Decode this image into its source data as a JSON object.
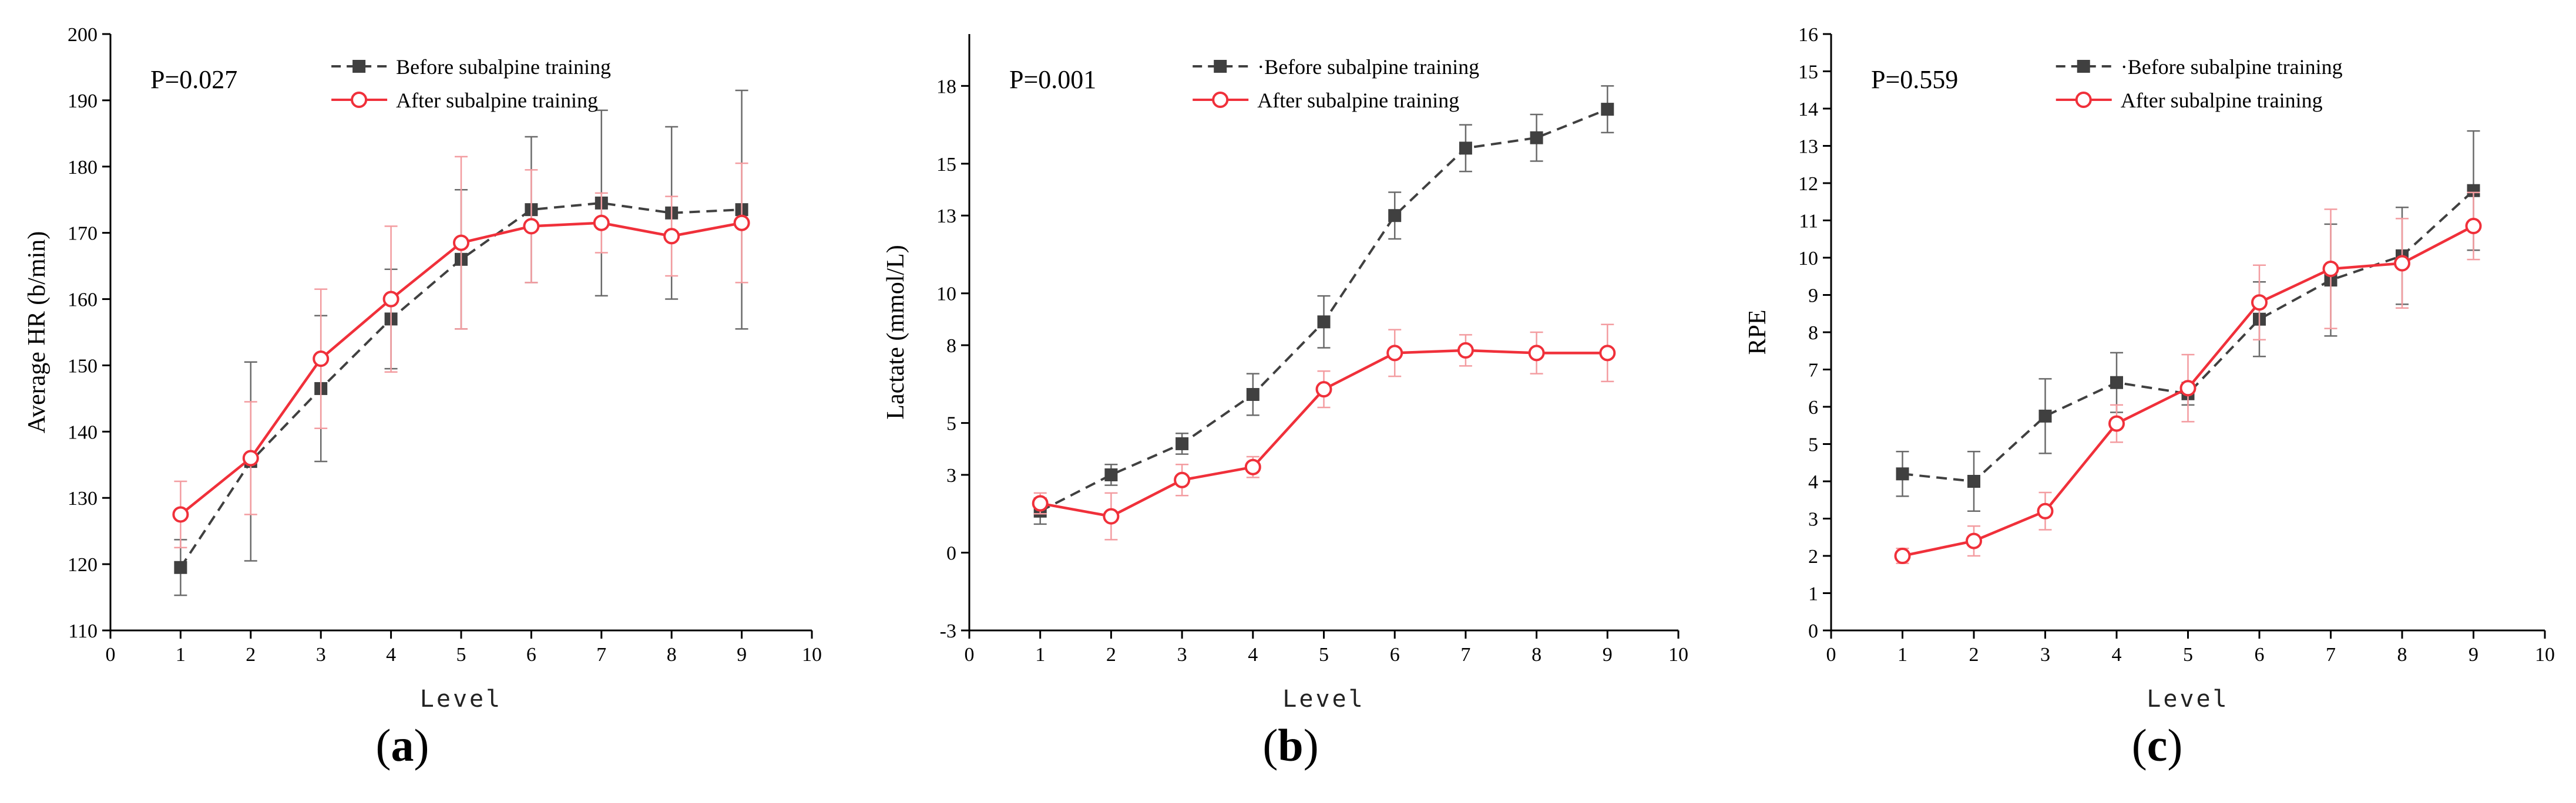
{
  "chart_data": [
    {
      "id": "a",
      "type": "line",
      "panel_label": "a",
      "title": "",
      "p_value": "P=0.027",
      "xlabel": "Level",
      "ylabel": "Average HR (b/min)",
      "xlim": [
        0,
        10
      ],
      "ylim": [
        110,
        200
      ],
      "xticks": [
        0,
        1,
        2,
        3,
        4,
        5,
        6,
        7,
        8,
        9,
        10
      ],
      "yticks": [
        110,
        120,
        130,
        140,
        150,
        160,
        170,
        180,
        190,
        200
      ],
      "legend_position": "top-center",
      "series": [
        {
          "name": "Before subalpine training",
          "legend_label": "Before subalpine training",
          "color": "#404040",
          "marker": "square",
          "line": "dashed",
          "x": [
            1,
            2,
            3,
            4,
            5,
            6,
            7,
            8,
            9
          ],
          "y": [
            119.5,
            135.5,
            146.5,
            157,
            166,
            173.5,
            174.5,
            173,
            173.5
          ],
          "err": [
            4.2,
            15,
            11,
            7.5,
            10.5,
            11,
            14,
            13,
            18
          ]
        },
        {
          "name": "After subalpine training",
          "legend_label": "After subalpine training",
          "color": "#f0303a",
          "marker": "circle",
          "line": "solid",
          "x": [
            1,
            2,
            3,
            4,
            5,
            6,
            7,
            8,
            9
          ],
          "y": [
            127.5,
            136,
            151,
            160,
            168.5,
            171,
            171.5,
            169.5,
            171.5
          ],
          "err": [
            5,
            8.5,
            10.5,
            11,
            13,
            8.5,
            4.5,
            6,
            9
          ]
        }
      ]
    },
    {
      "id": "b",
      "type": "line",
      "panel_label": "b",
      "title": "",
      "p_value": "P=0.001",
      "xlabel": "Level",
      "ylabel": "Lactate (mmol/L)",
      "xlim": [
        0,
        10
      ],
      "ylim": [
        -3,
        20
      ],
      "xticks": [
        0,
        1,
        2,
        3,
        4,
        5,
        6,
        7,
        8,
        9,
        10
      ],
      "yticks": [
        -3,
        0,
        3,
        5,
        8,
        10,
        13,
        15,
        18
      ],
      "legend_position": "top-center",
      "series": [
        {
          "name": "Before subalpine training",
          "legend_label": "·Before subalpine training",
          "color": "#404040",
          "marker": "square",
          "line": "dashed",
          "x": [
            1,
            2,
            3,
            4,
            5,
            6,
            7,
            8,
            9
          ],
          "y": [
            1.6,
            3.0,
            4.2,
            6.1,
            8.9,
            13.0,
            15.6,
            16.0,
            17.1
          ],
          "err": [
            0.5,
            0.4,
            0.4,
            0.8,
            1.0,
            0.9,
            0.9,
            0.9,
            0.9
          ]
        },
        {
          "name": "After subalpine training",
          "legend_label": "After subalpine training",
          "color": "#f0303a",
          "marker": "circle",
          "line": "solid",
          "x": [
            1,
            2,
            3,
            4,
            5,
            6,
            7,
            8,
            9
          ],
          "y": [
            1.9,
            1.4,
            2.8,
            3.3,
            6.3,
            7.7,
            7.8,
            7.7,
            7.7
          ],
          "err": [
            0.4,
            0.9,
            0.6,
            0.4,
            0.7,
            0.9,
            0.6,
            0.8,
            1.1
          ]
        }
      ]
    },
    {
      "id": "c",
      "type": "line",
      "panel_label": "c",
      "title": "",
      "p_value": "P=0.559",
      "xlabel": "Level",
      "ylabel": "RPE",
      "xlim": [
        0,
        10
      ],
      "ylim": [
        0,
        16
      ],
      "xticks": [
        0,
        1,
        2,
        3,
        4,
        5,
        6,
        7,
        8,
        9,
        10
      ],
      "yticks": [
        0,
        1,
        2,
        3,
        4,
        5,
        6,
        7,
        8,
        9,
        10,
        11,
        12,
        13,
        14,
        15,
        16
      ],
      "legend_position": "top-center",
      "series": [
        {
          "name": "Before subalpine training",
          "legend_label": "·Before subalpine training",
          "color": "#404040",
          "marker": "square",
          "line": "dashed",
          "x": [
            1,
            2,
            3,
            4,
            5,
            6,
            7,
            8,
            9
          ],
          "y": [
            4.2,
            4.0,
            5.75,
            6.65,
            6.35,
            8.35,
            9.4,
            10.05,
            11.8
          ],
          "err": [
            0.6,
            0.8,
            1.0,
            0.8,
            0.3,
            1.0,
            1.5,
            1.3,
            1.6
          ]
        },
        {
          "name": "After subalpine training",
          "legend_label": "After subalpine training",
          "color": "#f0303a",
          "marker": "circle",
          "line": "solid",
          "x": [
            1,
            2,
            3,
            4,
            5,
            6,
            7,
            8,
            9
          ],
          "y": [
            2.0,
            2.4,
            3.2,
            5.55,
            6.5,
            8.8,
            9.7,
            9.85,
            10.85
          ],
          "err": [
            0.2,
            0.4,
            0.5,
            0.5,
            0.9,
            1.0,
            1.6,
            1.2,
            0.9
          ]
        }
      ]
    }
  ]
}
